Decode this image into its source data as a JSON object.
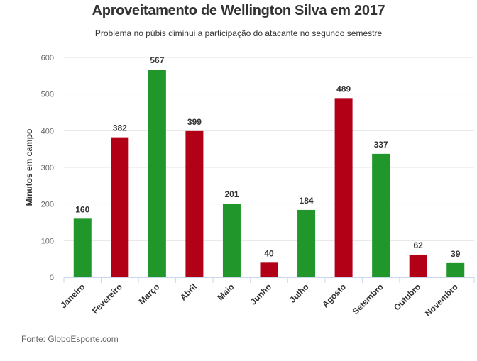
{
  "title": "Aproveitamento de Wellington Silva em 2017",
  "subtitle": "Problema no púbis diminui a participação do atacante no segundo semestre",
  "source": "Fonte: GloboEsporte.com",
  "colors": {
    "green": "#21962a",
    "red": "#b20017"
  },
  "chart_data": {
    "type": "bar",
    "title": "Aproveitamento de Wellington Silva em 2017",
    "subtitle": "Problema no púbis diminui a participação do atacante no segundo semestre",
    "xlabel": "",
    "ylabel": "Minutos em campo",
    "ylim": [
      0,
      600
    ],
    "yticks": [
      0,
      100,
      200,
      300,
      400,
      500,
      600
    ],
    "grid": true,
    "categories": [
      "Janeiro",
      "Fevereiro",
      "Março",
      "Abril",
      "Maio",
      "Junho",
      "Julho",
      "Agosto",
      "Setembro",
      "Outubro",
      "Novembro"
    ],
    "values": [
      160,
      382,
      567,
      399,
      201,
      40,
      184,
      489,
      337,
      62,
      39
    ],
    "bar_colors": [
      "green",
      "red",
      "green",
      "red",
      "green",
      "red",
      "green",
      "red",
      "green",
      "red",
      "green"
    ]
  }
}
